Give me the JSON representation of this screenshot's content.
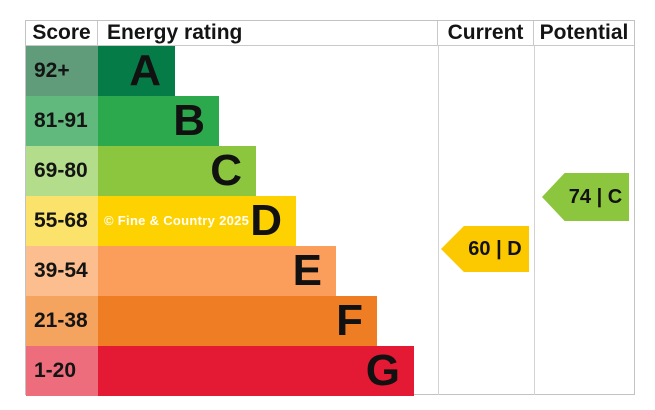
{
  "chart_data": {
    "type": "bar",
    "title": "Energy rating",
    "orientation": "horizontal",
    "categories": [
      "A",
      "B",
      "C",
      "D",
      "E",
      "F",
      "G"
    ],
    "score_ranges": [
      "92+",
      "81-91",
      "69-80",
      "55-68",
      "39-54",
      "21-38",
      "1-20"
    ],
    "bar_lengths_relative": [
      0.23,
      0.36,
      0.47,
      0.58,
      0.7,
      0.82,
      0.93
    ],
    "current": {
      "value": 60,
      "band": "D"
    },
    "potential": {
      "value": 74,
      "band": "C"
    },
    "legend_position": "none",
    "grid": false
  },
  "header": {
    "score": "Score",
    "energy": "Energy rating",
    "current": "Current",
    "potential": "Potential"
  },
  "bands": [
    {
      "letter": "A",
      "score": "92+",
      "bar_color": "#057c47",
      "score_color": "#609c79"
    },
    {
      "letter": "B",
      "score": "81-91",
      "bar_color": "#2ba94c",
      "score_color": "#62b97d"
    },
    {
      "letter": "C",
      "score": "69-80",
      "bar_color": "#8bc63e",
      "score_color": "#b3dc8b"
    },
    {
      "letter": "D",
      "score": "55-68",
      "bar_color": "#fed201",
      "score_color": "#fbe36b",
      "watermark": "© Fine & Country 2025"
    },
    {
      "letter": "E",
      "score": "39-54",
      "bar_color": "#fb9e5b",
      "score_color": "#fcbe8e"
    },
    {
      "letter": "F",
      "score": "21-38",
      "bar_color": "#ee7d23",
      "score_color": "#f5a460"
    },
    {
      "letter": "G",
      "score": "1-20",
      "bar_color": "#e41934",
      "score_color": "#ed6d7d"
    }
  ],
  "markers": {
    "current": {
      "label": "60 | D",
      "value": "60",
      "band": "D",
      "color": "#fcc900"
    },
    "potential": {
      "label": "74 | C",
      "value": "74",
      "band": "C",
      "color": "#8cc63f"
    }
  },
  "colors": {
    "border": "#c2c2c2",
    "text": "#141414",
    "watermark_text": "#ffffff"
  }
}
